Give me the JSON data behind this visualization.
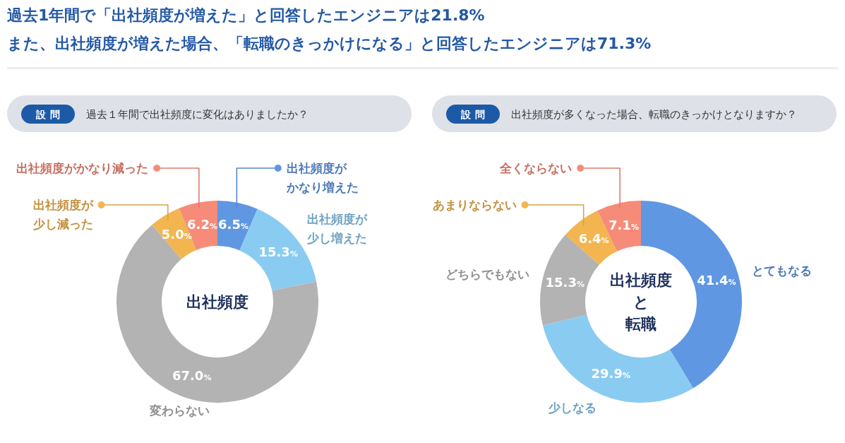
{
  "chart_data": [
    {
      "type": "donut",
      "title": "過去1年間で「出社頻度が増えた」と回答したエンジニアは21.8%",
      "subtitle": "過去１年間で出社頻度に変化はありましたか？",
      "categories": [
        "出社頻度がかなり増えた",
        "出社頻度が少し増えた",
        "変わらない",
        "出社頻度が少し減った",
        "出社頻度がかなり減った"
      ],
      "values": [
        6.5,
        15.3,
        67.0,
        5.0,
        6.2
      ],
      "colors": [
        "#6097e3",
        "#8acbf1",
        "#b3b3b3",
        "#f3b54f",
        "#f78b79"
      ],
      "value_labels": [
        "6.5%",
        "15.3%",
        "67.0%",
        "5.0%",
        "6.2%"
      ],
      "annotations": [
        "設問",
        "出社頻度"
      ]
    },
    {
      "type": "donut",
      "title": "また、出社頻度が増えた場合、「転職のきっかけになる」と回答したエンジニアは71.3%",
      "subtitle": "出社頻度が多くなった場合、転職のきっかけとなりますか？",
      "categories": [
        "とてもなる",
        "少しなる",
        "どちらでもない",
        "あまりならない",
        "全くならない"
      ],
      "values": [
        41.4,
        29.9,
        15.3,
        6.4,
        7.1
      ],
      "colors": [
        "#6097e3",
        "#8acbf1",
        "#b3b3b3",
        "#f3b54f",
        "#f78b79"
      ],
      "value_labels": [
        "41.4%",
        "29.9%",
        "15.3%",
        "6.4%",
        "7.1%"
      ],
      "annotations": [
        "設問",
        "出社頻度と転職"
      ]
    }
  ]
}
